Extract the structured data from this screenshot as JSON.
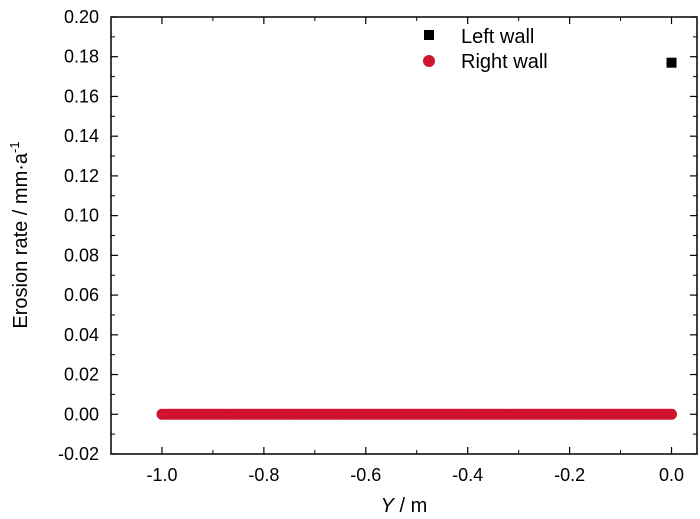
{
  "chart_data": {
    "type": "scatter",
    "xlabel_symbol": "Y",
    "xlabel_unit": " / m",
    "ylabel_main": "Erosion rate / mm·a",
    "ylabel_sup": "-1",
    "xlim": [
      -1.1,
      0.05
    ],
    "ylim": [
      -0.02,
      0.2
    ],
    "xticks": [
      "-1.0",
      "-0.8",
      "-0.6",
      "-0.4",
      "-0.2",
      "0.0"
    ],
    "xtick_values": [
      -1.0,
      -0.8,
      -0.6,
      -0.4,
      -0.2,
      0.0
    ],
    "yticks": [
      "-0.02",
      "0.00",
      "0.02",
      "0.04",
      "0.06",
      "0.08",
      "0.10",
      "0.12",
      "0.14",
      "0.16",
      "0.18",
      "0.20"
    ],
    "ytick_values": [
      -0.02,
      0.0,
      0.02,
      0.04,
      0.06,
      0.08,
      0.1,
      0.12,
      0.14,
      0.16,
      0.18,
      0.2
    ],
    "legend_position": "top-right",
    "grid": false,
    "series": [
      {
        "name": "Left wall",
        "marker": "square",
        "color": "#000000",
        "x": [
          0.0
        ],
        "y": [
          0.177
        ]
      },
      {
        "name": "Right wall",
        "marker": "circle",
        "color": "#d0132f",
        "x_range": [
          -1.0,
          0.0
        ],
        "x_step": 0.005,
        "y_constant": 0.0
      }
    ]
  }
}
